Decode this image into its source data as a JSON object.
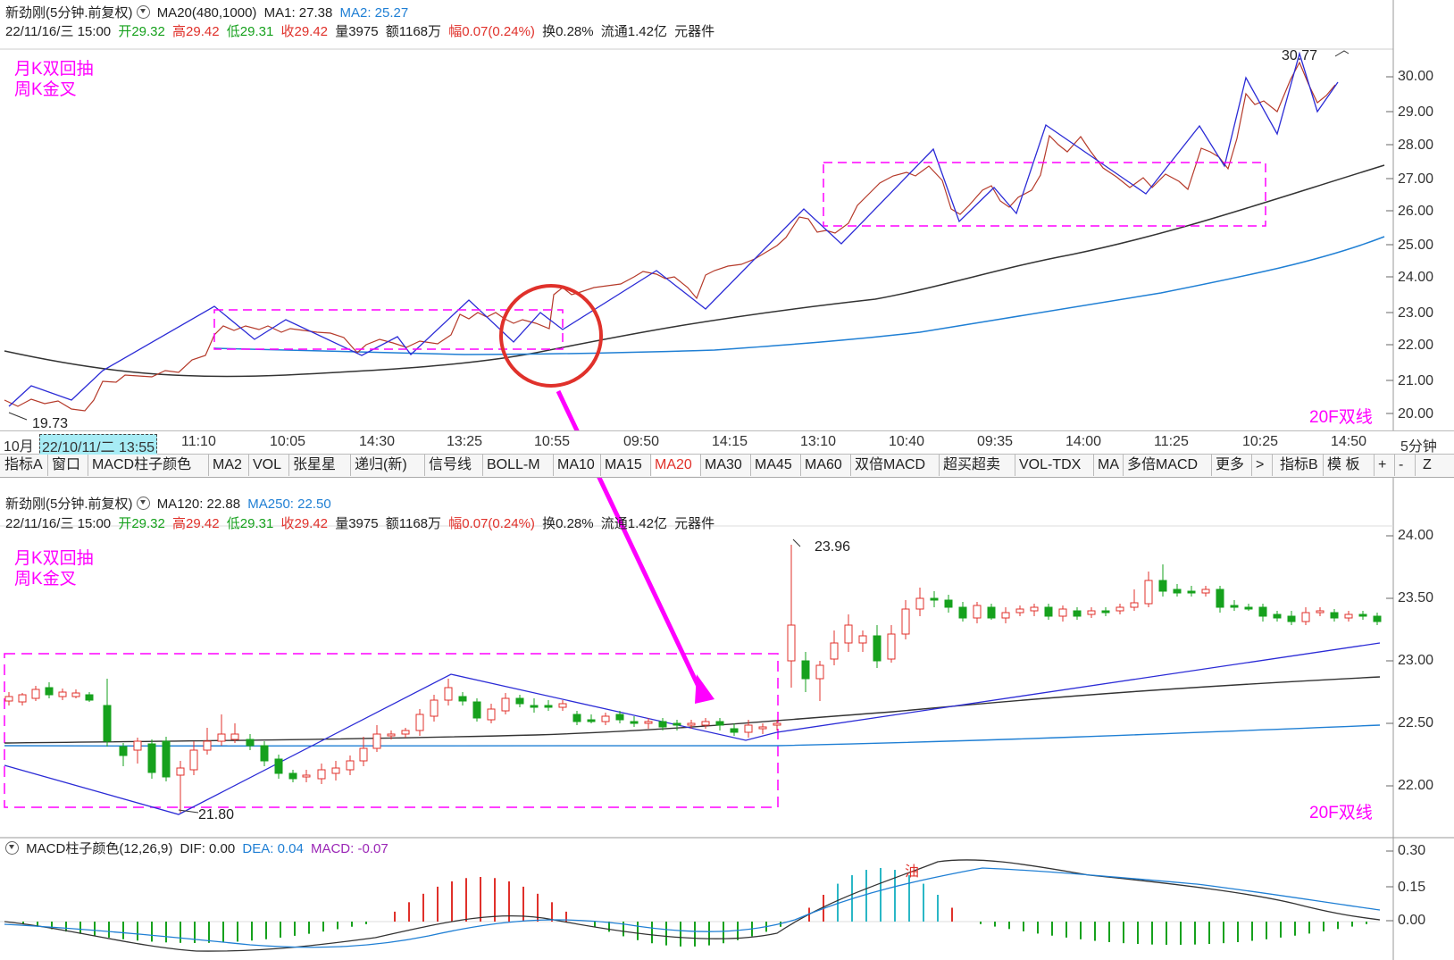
{
  "top_chart": {
    "header": {
      "title": "新劲刚(5分钟.前复权)",
      "ma_params": "MA20(480,1000)",
      "ma1": "MA1: 27.38",
      "ma2": "MA2: 25.27"
    },
    "quote": {
      "datetime": "22/11/16/三 15:00",
      "open": "开29.32",
      "high": "高29.42",
      "low": "低29.31",
      "close": "收29.42",
      "volume": "量3975",
      "amount": "额1168万",
      "change": "幅0.07(0.24%)",
      "turnover": "换0.28%",
      "float": "流通1.42亿",
      "sector": "元器件"
    },
    "notes": [
      "月K双回抽",
      "周K金叉"
    ],
    "corner_label": "20F双线",
    "y_axis": [
      "30.00",
      "29.00",
      "28.00",
      "27.00",
      "26.00",
      "25.00",
      "24.00",
      "23.00",
      "22.00",
      "21.00",
      "20.00"
    ],
    "annotations": {
      "high": "30.77",
      "low": "19.73"
    }
  },
  "time_axis": {
    "labels": [
      "10月",
      "22/10/11/二 13:55",
      "11:10",
      "10:05",
      "14:30",
      "13:25",
      "10:55",
      "09:50",
      "14:15",
      "13:10",
      "10:40",
      "09:35",
      "14:00",
      "11:25",
      "10:25",
      "14:50"
    ],
    "period": "5分钟"
  },
  "toolbar": {
    "items": [
      "指标A",
      "窗口",
      "MACD柱子颜色",
      "MA2",
      "VOL",
      "张星星",
      "递归(新)",
      "信号线",
      "BOLL-M",
      "MA10",
      "MA15",
      "MA20",
      "MA30",
      "MA45",
      "MA60",
      "双倍MACD",
      "超买超卖",
      "VOL-TDX",
      "MA",
      "多倍MACD",
      "更多",
      ">",
      "指标B",
      "模 板",
      "+",
      "-",
      "Z"
    ],
    "active": "MA20"
  },
  "mid_chart": {
    "header": {
      "title": "新劲刚(5分钟.前复权)",
      "ma120": "MA120: 22.88",
      "ma250": "MA250: 22.50"
    },
    "quote": {
      "datetime": "22/11/16/三 15:00",
      "open": "开29.32",
      "high": "高29.42",
      "low": "低29.31",
      "close": "收29.42",
      "volume": "量3975",
      "amount": "额1168万",
      "change": "幅0.07(0.24%)",
      "turnover": "换0.28%",
      "float": "流通1.42亿",
      "sector": "元器件"
    },
    "notes": [
      "月K双回抽",
      "周K金叉"
    ],
    "corner_label": "20F双线",
    "y_axis": [
      "24.00",
      "23.50",
      "23.00",
      "22.50",
      "22.00"
    ],
    "annotations": {
      "high": "23.96",
      "low": "21.80"
    }
  },
  "macd_panel": {
    "title": "MACD柱子颜色(12,26,9)",
    "dif": "DIF: 0.00",
    "dea": "DEA: 0.04",
    "macd": "MACD: -0.07",
    "y_axis": [
      "0.30",
      "0.15",
      "0.00"
    ],
    "marker": "油"
  },
  "colors": {
    "up": "#e0312b",
    "down": "#16a11d",
    "annotation": "#ff00ff",
    "trend": "#2b2bd6",
    "ma_long": "#333333",
    "ma_short": "#1f7fd4"
  }
}
